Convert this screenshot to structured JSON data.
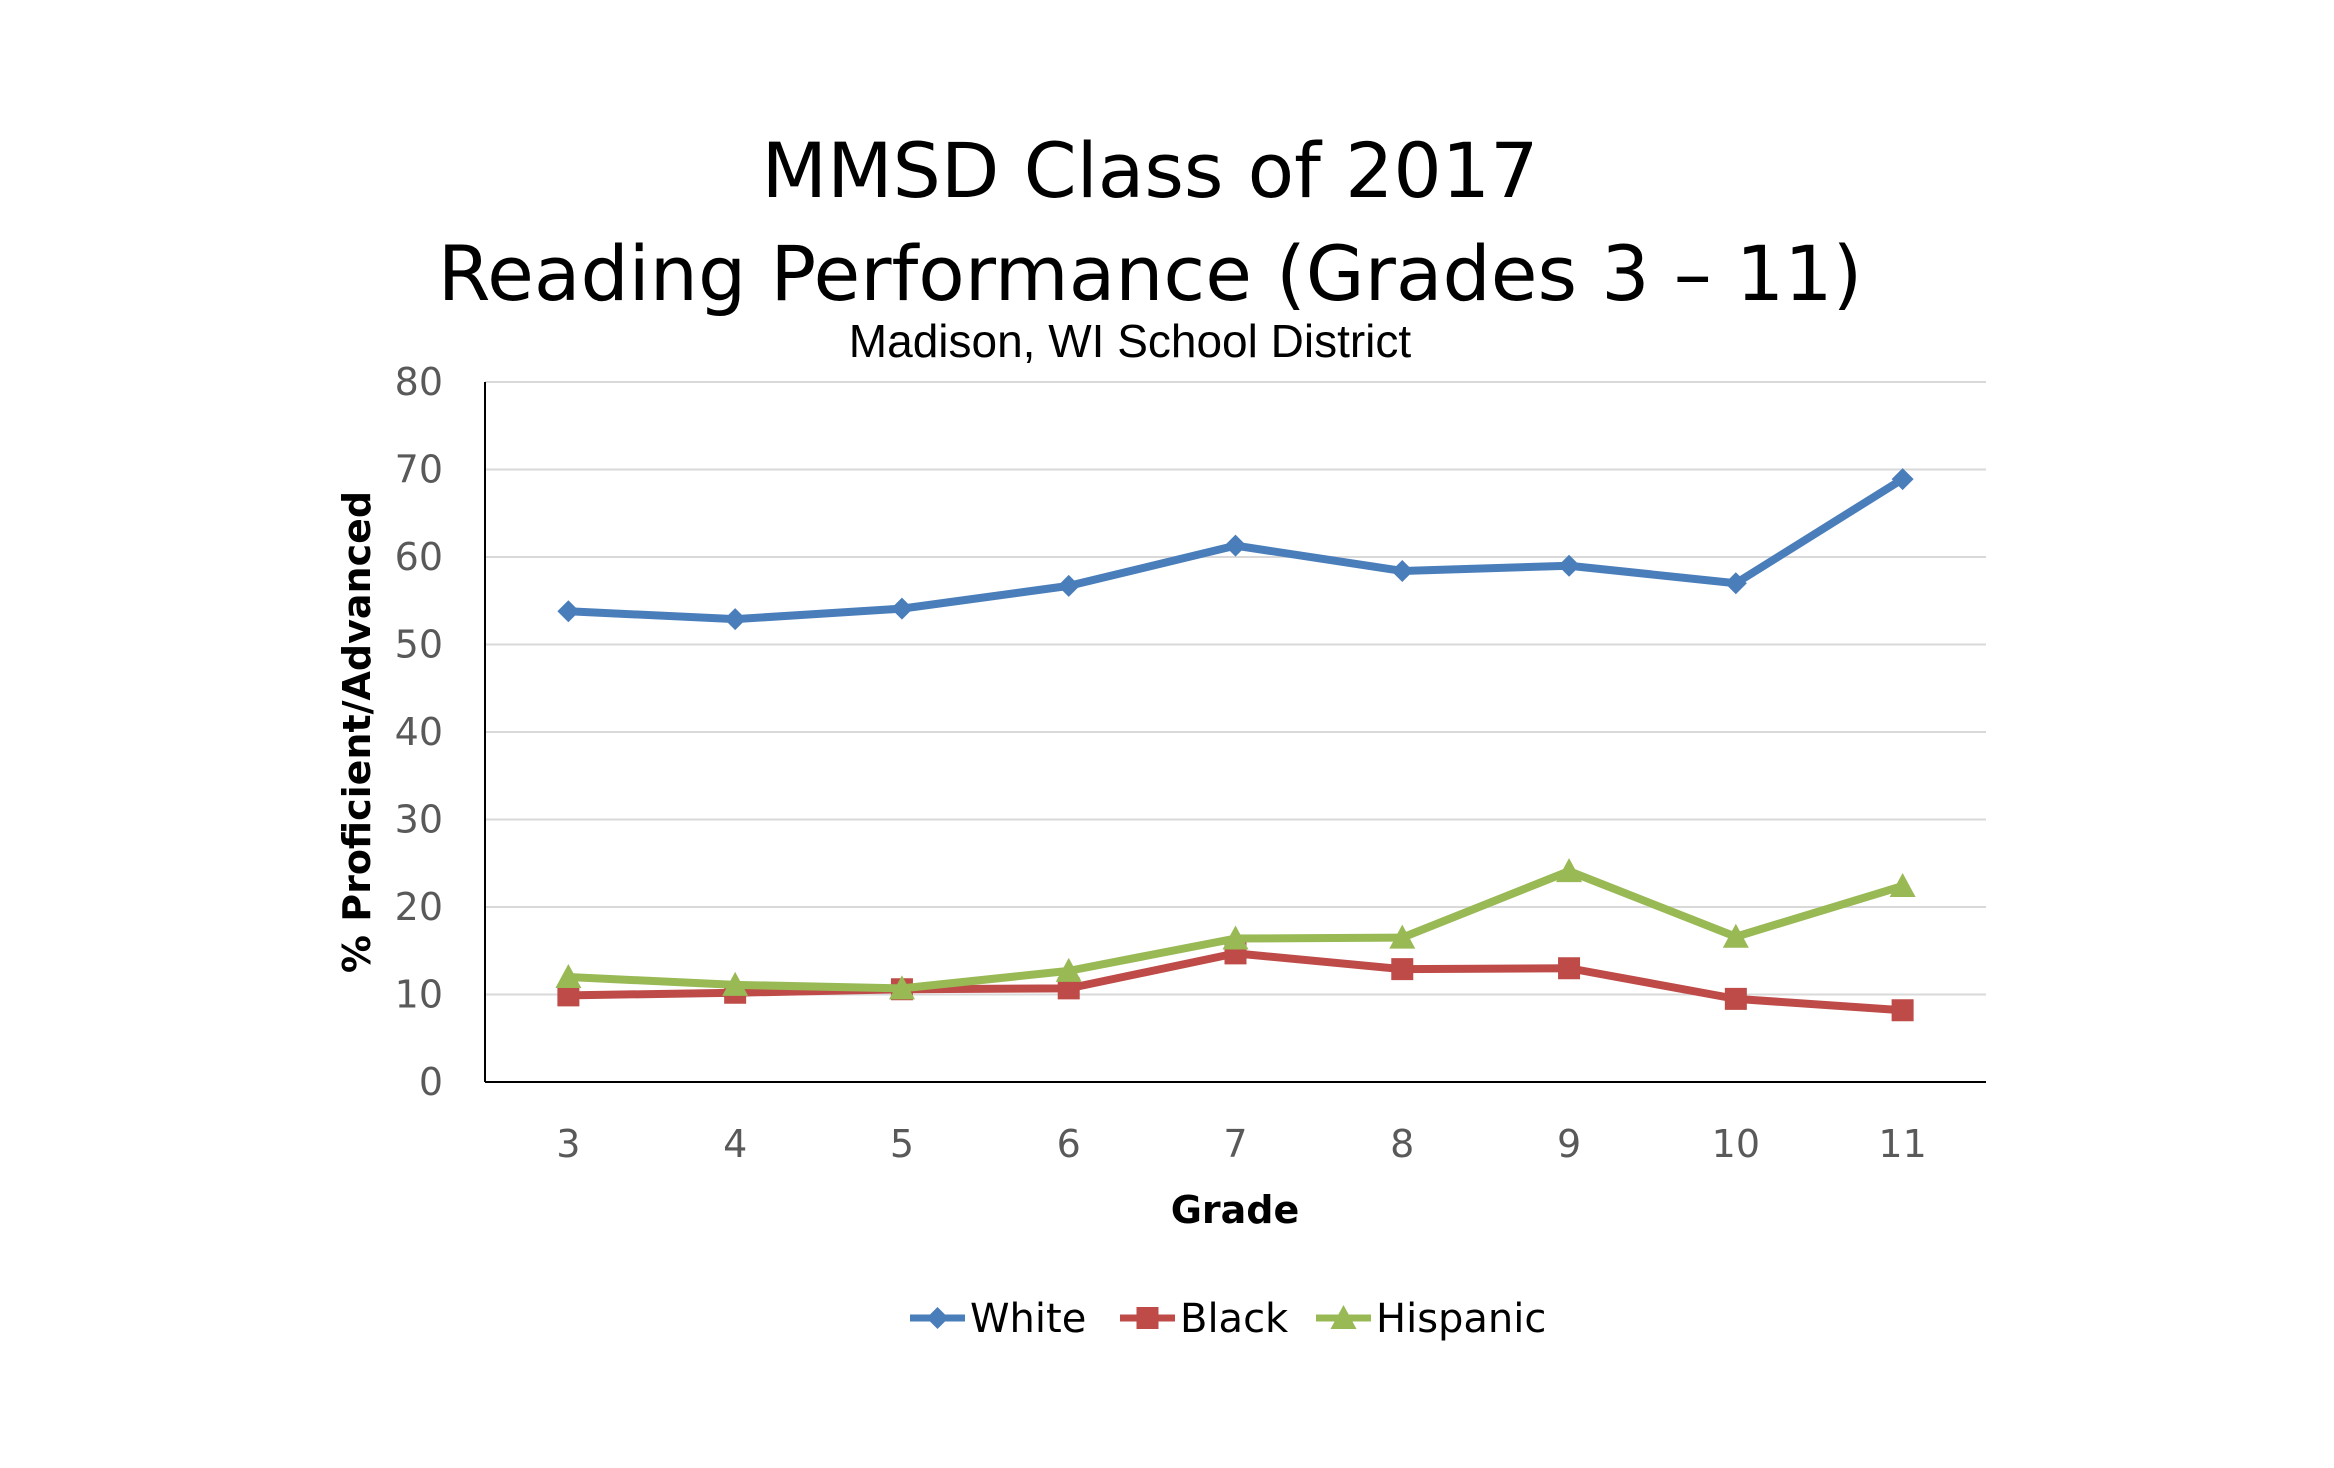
{
  "chart_data": {
    "type": "line",
    "title": [
      "MMSD Class of 2017",
      "Reading Performance (Grades 3 – 11)"
    ],
    "subtitle": "Madison, WI School District",
    "xlabel": "Grade",
    "ylabel": "% Proficient/Advanced",
    "categories": [
      "3",
      "4",
      "5",
      "6",
      "7",
      "8",
      "9",
      "10",
      "11"
    ],
    "ylim": [
      0,
      80
    ],
    "yticks": [
      0,
      10,
      20,
      30,
      40,
      50,
      60,
      70,
      80
    ],
    "grid": true,
    "legend_position": "bottom",
    "series": [
      {
        "name": "White",
        "color": "#4a7ebb",
        "marker": "diamond",
        "values": [
          53.8,
          52.9,
          54.1,
          56.7,
          61.3,
          58.4,
          59.0,
          57.0,
          68.9
        ]
      },
      {
        "name": "Black",
        "color": "#be4b48",
        "marker": "square",
        "values": [
          9.9,
          10.2,
          10.6,
          10.7,
          14.7,
          12.9,
          13.0,
          9.5,
          8.2
        ]
      },
      {
        "name": "Hispanic",
        "color": "#98b954",
        "marker": "triangle",
        "values": [
          12.0,
          11.1,
          10.7,
          12.7,
          16.4,
          16.5,
          24.1,
          16.6,
          22.4
        ]
      }
    ]
  }
}
